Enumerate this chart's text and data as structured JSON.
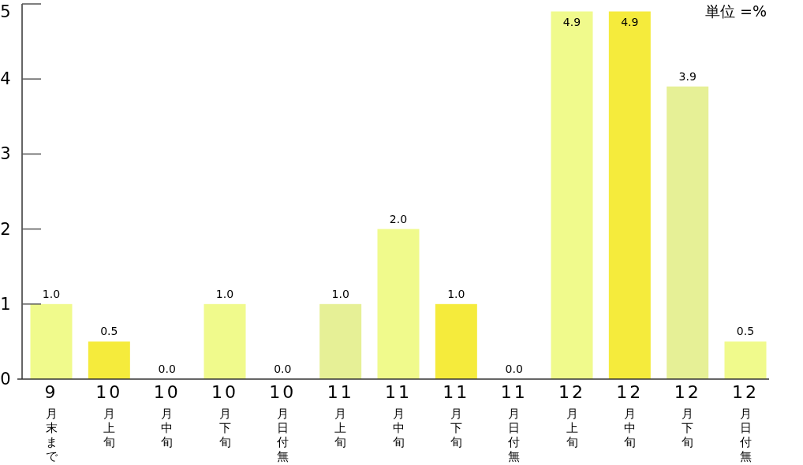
{
  "chart_data": {
    "type": "bar",
    "categories": [
      "9月末まで",
      "10月上旬",
      "10月中旬",
      "10月下旬",
      "10月日付無",
      "11月上旬",
      "11月中旬",
      "11月下旬",
      "11月日付無",
      "12月上旬",
      "12月中旬",
      "12月下旬",
      "12月日付無"
    ],
    "values": [
      1.0,
      0.5,
      0.0,
      1.0,
      0.0,
      1.0,
      2.0,
      1.0,
      0.0,
      4.9,
      4.9,
      3.9,
      0.5
    ],
    "colors": [
      "#f0fa8c",
      "#f5eb3c",
      "#f0fa8c",
      "#f0fa8c",
      "#f0fa8c",
      "#e6f096",
      "#f0fa8c",
      "#f5eb3c",
      "#f0fa8c",
      "#f0fa8c",
      "#f5eb3c",
      "#e6f096",
      "#f0fa8c"
    ],
    "ylim": [
      0,
      5
    ],
    "yticks": [
      0,
      1,
      2,
      3,
      4,
      5
    ],
    "value_labels": [
      "1.0",
      "0.5",
      "0.0",
      "1.0",
      "0.0",
      "1.0",
      "2.0",
      "1.0",
      "0.0",
      "4.9",
      "4.9",
      "3.9",
      "0.5"
    ],
    "annotations": [
      "単位 =%"
    ]
  }
}
